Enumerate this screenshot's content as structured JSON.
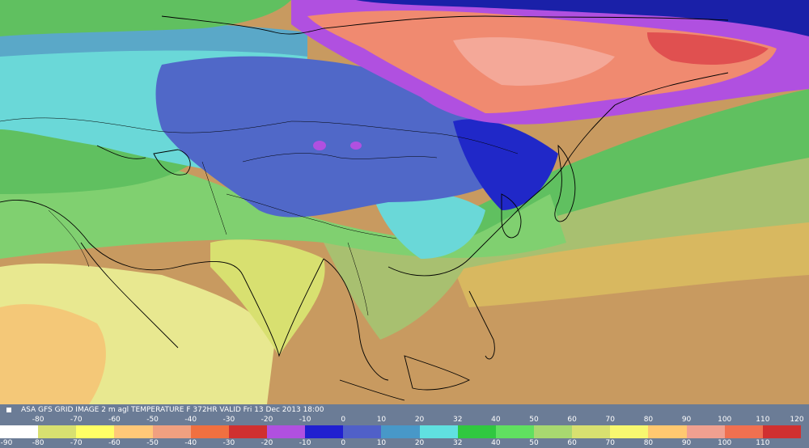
{
  "title": "ASA GFS GRID IMAGE 2 m agl TEMPERATURE F 372HR VALID Fri 13 Dec 2013 18:00",
  "legend": {
    "unit": "F",
    "ticks_top": [
      "-80",
      "-70",
      "-60",
      "-50",
      "-40",
      "-30",
      "-20",
      "-10",
      "0",
      "10",
      "20",
      "32",
      "40",
      "50",
      "60",
      "70",
      "80",
      "90",
      "100",
      "110",
      "120"
    ],
    "ticks_bottom": [
      "-90",
      "-80",
      "-70",
      "-60",
      "-50",
      "-40",
      "-30",
      "-20",
      "-10",
      "0",
      "10",
      "20",
      "32",
      "40",
      "50",
      "60",
      "70",
      "80",
      "90",
      "100",
      "110"
    ],
    "colors": [
      "#ffffff",
      "#d8e070",
      "#ffff66",
      "#ffc878",
      "#f0a080",
      "#f07040",
      "#d03030",
      "#b050e0",
      "#2020d0",
      "#5060c8",
      "#4898c8",
      "#60e0e0",
      "#30c840",
      "#60e060",
      "#a8d870",
      "#d8e070",
      "#f8f870",
      "#ffc870",
      "#f0a090",
      "#f07050",
      "#d03030"
    ]
  },
  "map_colors": {
    "ocean_warm": "#c89a60",
    "sea_mid": "#d8b860",
    "tropics_land": "#e8e890",
    "green": "#60c060",
    "lightgreen": "#80d070",
    "olive": "#a8c070",
    "cyan": "#6ad8d8",
    "teal": "#5aa8c8",
    "blue": "#5068c8",
    "darkblue": "#2028c8",
    "purple": "#b050e0",
    "salmon": "#f08a70",
    "pink": "#f4a898",
    "red": "#e05050",
    "navy": "#1a20a8"
  }
}
